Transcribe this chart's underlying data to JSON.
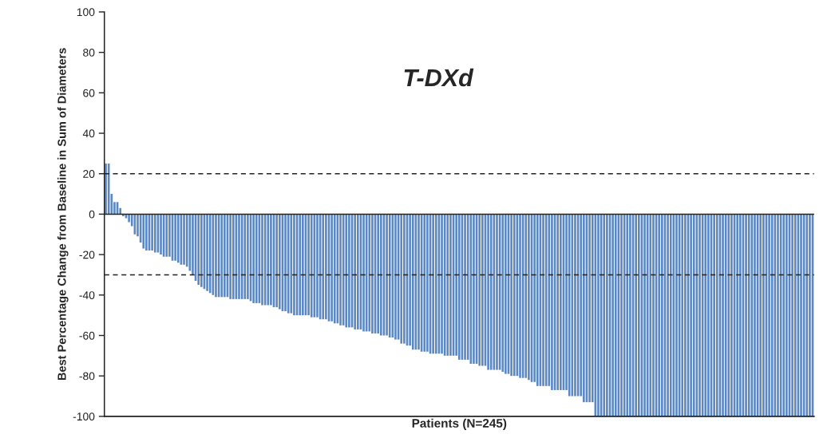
{
  "chart_data": {
    "type": "bar",
    "title": "T-DXd",
    "xlabel": "Patients (N=245)",
    "ylabel": "Best Percentage Change from Baseline in Sum of Diameters",
    "categories": [
      null,
      null,
      null,
      null,
      null,
      null,
      null,
      null,
      null,
      null,
      null,
      null,
      null,
      null,
      null,
      null,
      null,
      null,
      null,
      null,
      null,
      null,
      null,
      null,
      null,
      null,
      null,
      null,
      null,
      null,
      null,
      null,
      null,
      null,
      null,
      null,
      null,
      null,
      null,
      null,
      null,
      null,
      null,
      null,
      null,
      null,
      null,
      null,
      null,
      null,
      null,
      null,
      null,
      null,
      null,
      null,
      null,
      null,
      null,
      null,
      null,
      null,
      null,
      null,
      null,
      null,
      null,
      null,
      null,
      null,
      null,
      null,
      null,
      null,
      null,
      null,
      null,
      null,
      null,
      null,
      null,
      null,
      null,
      null,
      null,
      null,
      null,
      null,
      null,
      null,
      null,
      null,
      null,
      null,
      null,
      null,
      null,
      null,
      null,
      null,
      null,
      null,
      null,
      null,
      null,
      null,
      null,
      null,
      null,
      null,
      null,
      null,
      null,
      null,
      null,
      null,
      null,
      null,
      null,
      null,
      null,
      null,
      null,
      null,
      null,
      null,
      null,
      null,
      null,
      null,
      null,
      null,
      null,
      null,
      null,
      null,
      null,
      null,
      null,
      null,
      null,
      null,
      null,
      null,
      null,
      null,
      null,
      null,
      null,
      null,
      null,
      null,
      null,
      null,
      null,
      null,
      null,
      null,
      null,
      null,
      null,
      null,
      null,
      null,
      null,
      null,
      null,
      null,
      null,
      null,
      null,
      null,
      null,
      null,
      null,
      null,
      null,
      null,
      null,
      null,
      null,
      null,
      null,
      null,
      null,
      null,
      null,
      null,
      null,
      null,
      null,
      null,
      null,
      null,
      null,
      null,
      null,
      null,
      null,
      null,
      null,
      null,
      null,
      null,
      null,
      null,
      null,
      null,
      null,
      null,
      null,
      null,
      null,
      null,
      null,
      null,
      null,
      null,
      null,
      null,
      null,
      null,
      null,
      null,
      null,
      null,
      null,
      null,
      null,
      null,
      null,
      null,
      null,
      null,
      null,
      null,
      null,
      null,
      null,
      null,
      null,
      null,
      null,
      null,
      null
    ],
    "values": [
      25,
      25,
      10,
      6,
      6,
      3,
      -1,
      -2,
      -4,
      -6,
      -10,
      -11,
      -14,
      -17,
      -18,
      -18,
      -18,
      -19,
      -19,
      -20,
      -21,
      -21,
      -21,
      -23,
      -23,
      -24,
      -25,
      -25,
      -26,
      -28,
      -30,
      -33,
      -35,
      -36,
      -37,
      -38,
      -39,
      -40,
      -41,
      -41,
      -41,
      -41,
      -41,
      -42,
      -42,
      -42,
      -42,
      -42,
      -42,
      -42,
      -43,
      -44,
      -44,
      -44,
      -45,
      -45,
      -45,
      -45,
      -46,
      -46,
      -47,
      -48,
      -48,
      -49,
      -49,
      -50,
      -50,
      -50,
      -50,
      -50,
      -50,
      -51,
      -51,
      -51,
      -52,
      -52,
      -52,
      -53,
      -53,
      -54,
      -54,
      -55,
      -55,
      -56,
      -56,
      -56,
      -57,
      -57,
      -57,
      -58,
      -58,
      -58,
      -59,
      -59,
      -59,
      -60,
      -60,
      -60,
      -61,
      -61,
      -62,
      -62,
      -64,
      -64,
      -65,
      -65,
      -67,
      -67,
      -67,
      -68,
      -68,
      -68,
      -69,
      -69,
      -69,
      -69,
      -69,
      -70,
      -70,
      -70,
      -70,
      -70,
      -72,
      -72,
      -72,
      -72,
      -74,
      -74,
      -74,
      -75,
      -75,
      -75,
      -77,
      -77,
      -77,
      -77,
      -77,
      -78,
      -79,
      -79,
      -80,
      -80,
      -80,
      -81,
      -81,
      -81,
      -82,
      -83,
      -83,
      -85,
      -85,
      -85,
      -85,
      -85,
      -87,
      -87,
      -87,
      -87,
      -87,
      -87,
      -90,
      -90,
      -90,
      -90,
      -90,
      -93,
      -93,
      -93,
      -93,
      -100,
      -100,
      -100,
      -100,
      -100,
      -100,
      -100,
      -100,
      -100,
      -100,
      -100,
      -100,
      -100,
      -100,
      -100,
      -100,
      -100,
      -100,
      -100,
      -100,
      -100,
      -100,
      -100,
      -100,
      -100,
      -100,
      -100,
      -100,
      -100,
      -100,
      -100,
      -100,
      -100,
      -100,
      -100,
      -100,
      -100,
      -100,
      -100,
      -100,
      -100,
      -100,
      -100,
      -100,
      -100,
      -100,
      -100,
      -100,
      -100,
      -100,
      -100,
      -100,
      -100,
      -100,
      -100,
      -100,
      -100,
      -100,
      -100,
      -100,
      -100,
      -100,
      -100,
      -100,
      -100,
      -100,
      -100,
      -100,
      -100,
      -100,
      -100,
      -100,
      -100,
      -100,
      -100,
      -100
    ],
    "color": "#5b87c3",
    "ylim": [
      -100,
      100
    ],
    "yticks": [
      -100,
      -80,
      -60,
      -40,
      -20,
      0,
      20,
      40,
      60,
      80,
      100
    ],
    "ref_lines": [
      {
        "axis": "y",
        "value": 20,
        "line_style": "dashed"
      },
      {
        "axis": "y",
        "value": -30,
        "line_style": "dashed"
      },
      {
        "axis": "y",
        "value": 0,
        "line_style": "solid"
      }
    ]
  }
}
